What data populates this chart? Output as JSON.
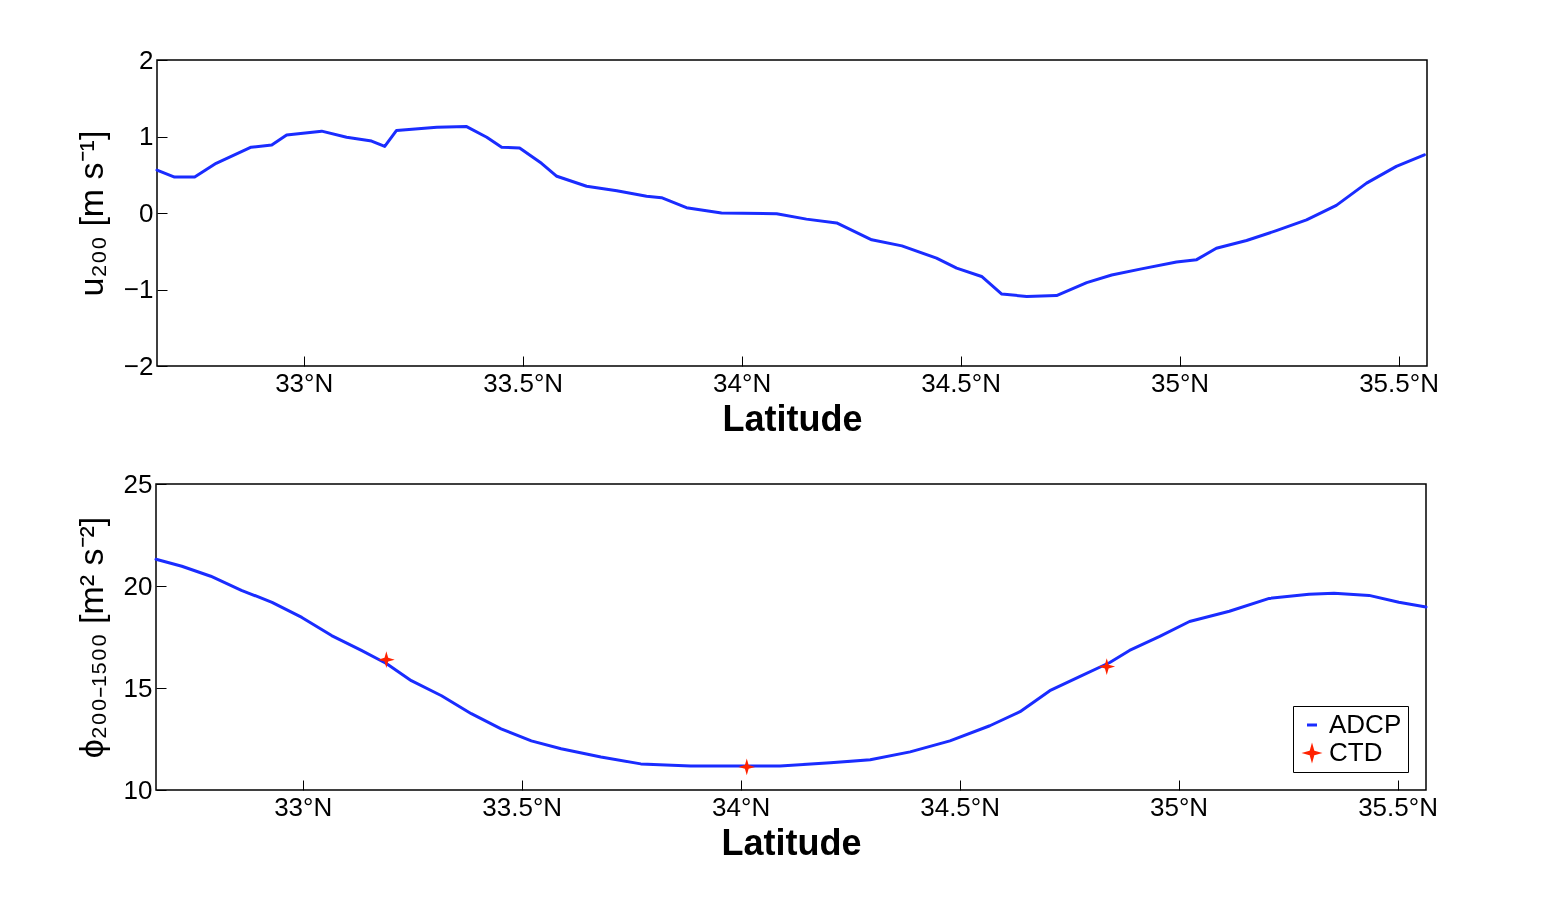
{
  "chart_data": [
    {
      "type": "line",
      "xlabel": "Latitude",
      "ylabel": "u₂₀₀ [m s⁻¹]",
      "xlim": [
        32.665,
        35.565
      ],
      "xticks": [
        {
          "value": 33,
          "label": "33°N"
        },
        {
          "value": 33.5,
          "label": "33.5°N"
        },
        {
          "value": 34,
          "label": "34°N"
        },
        {
          "value": 34.5,
          "label": "34.5°N"
        },
        {
          "value": 35,
          "label": "35°N"
        },
        {
          "value": 35.5,
          "label": "35.5°N"
        }
      ],
      "ylim": [
        -2,
        2
      ],
      "yticks": [
        -2,
        -1,
        0,
        1,
        2
      ],
      "grid": false,
      "series": [
        {
          "color": "#1a2cff",
          "x": [
            32.665,
            32.705,
            32.751,
            32.8,
            32.88,
            32.927,
            32.961,
            33.041,
            33.098,
            33.155,
            33.185,
            33.212,
            33.304,
            33.372,
            33.418,
            33.452,
            33.493,
            33.543,
            33.578,
            33.646,
            33.715,
            33.783,
            33.817,
            33.874,
            33.954,
            34.08,
            34.148,
            34.217,
            34.297,
            34.366,
            34.445,
            34.491,
            34.548,
            34.594,
            34.651,
            34.719,
            34.788,
            34.845,
            34.913,
            34.993,
            35.039,
            35.084,
            35.153,
            35.221,
            35.29,
            35.358,
            35.427,
            35.495,
            35.559
          ],
          "values": [
            0.56,
            0.47,
            0.47,
            0.65,
            0.86,
            0.89,
            1.02,
            1.07,
            0.99,
            0.94,
            0.87,
            1.08,
            1.12,
            1.13,
            0.99,
            0.86,
            0.85,
            0.65,
            0.48,
            0.35,
            0.29,
            0.22,
            0.2,
            0.07,
            0.0,
            -0.01,
            -0.08,
            -0.13,
            -0.35,
            -0.43,
            -0.59,
            -0.72,
            -0.83,
            -1.06,
            -1.09,
            -1.08,
            -0.91,
            -0.81,
            -0.73,
            -0.64,
            -0.61,
            -0.46,
            -0.36,
            -0.23,
            -0.09,
            0.1,
            0.39,
            0.61,
            0.76
          ]
        }
      ]
    },
    {
      "type": "line",
      "xlabel": "Latitude",
      "ylabel": "ϕ₂₀₀₋₁₅₀₀ [m² s⁻²]",
      "xlim": [
        32.665,
        35.565
      ],
      "xticks": [
        {
          "value": 33,
          "label": "33°N"
        },
        {
          "value": 33.5,
          "label": "33.5°N"
        },
        {
          "value": 34,
          "label": "34°N"
        },
        {
          "value": 34.5,
          "label": "34.5°N"
        },
        {
          "value": 35,
          "label": "35°N"
        },
        {
          "value": 35.5,
          "label": "35.5°N"
        }
      ],
      "ylim": [
        10,
        25
      ],
      "yticks": [
        10,
        15,
        20,
        25
      ],
      "grid": false,
      "legend": "bottom right",
      "series": [
        {
          "name": "ADCP",
          "color": "#1a2cff",
          "x": [
            32.665,
            32.724,
            32.79,
            32.86,
            32.93,
            32.998,
            33.066,
            33.134,
            33.191,
            33.248,
            33.317,
            33.385,
            33.453,
            33.522,
            33.59,
            33.681,
            33.772,
            33.886,
            33.977,
            34.09,
            34.205,
            34.296,
            34.387,
            34.478,
            34.569,
            34.638,
            34.706,
            34.774,
            34.843,
            34.888,
            34.957,
            35.025,
            35.116,
            35.207,
            35.298,
            35.355,
            35.435,
            35.503,
            35.565
          ],
          "values": [
            21.31,
            20.97,
            20.48,
            19.79,
            19.2,
            18.46,
            17.57,
            16.84,
            16.2,
            15.36,
            14.62,
            13.74,
            13.0,
            12.41,
            12.02,
            11.62,
            11.28,
            11.18,
            11.18,
            11.18,
            11.33,
            11.48,
            11.87,
            12.41,
            13.15,
            13.84,
            14.87,
            15.56,
            16.25,
            16.84,
            17.53,
            18.26,
            18.76,
            19.39,
            19.59,
            19.64,
            19.54,
            19.2,
            18.97
          ]
        },
        {
          "name": "CTD",
          "type": "scatter",
          "marker": "star",
          "color": "#ff2200",
          "x": [
            33.191,
            34.014,
            34.836
          ],
          "values": [
            16.39,
            11.13,
            16.05
          ]
        }
      ]
    }
  ]
}
